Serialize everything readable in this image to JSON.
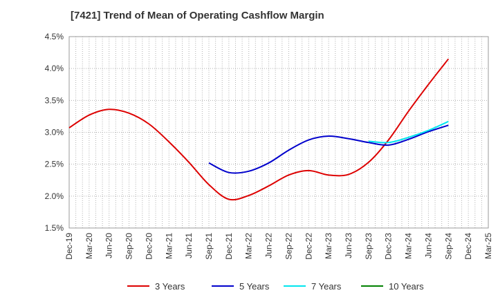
{
  "chart_data": {
    "type": "line",
    "title": "[7421]  Trend of Mean of Operating Cashflow Margin",
    "xlabel": "",
    "ylabel": "",
    "x_ticks": [
      "Dec-19",
      "Mar-20",
      "Jun-20",
      "Sep-20",
      "Dec-20",
      "Mar-21",
      "Jun-21",
      "Sep-21",
      "Dec-21",
      "Mar-22",
      "Jun-22",
      "Sep-22",
      "Dec-22",
      "Mar-23",
      "Jun-23",
      "Sep-23",
      "Dec-23",
      "Mar-24",
      "Jun-24",
      "Sep-24",
      "Dec-24",
      "Mar-25"
    ],
    "y_ticks": [
      "1.5%",
      "2.0%",
      "2.5%",
      "3.0%",
      "3.5%",
      "4.0%",
      "4.5%"
    ],
    "ylim": [
      1.5,
      4.5
    ],
    "grid": true,
    "legend_position": "bottom",
    "series": [
      {
        "name": "3 Years",
        "color": "#dd0000",
        "x": [
          "Dec-19",
          "Mar-20",
          "Jun-20",
          "Sep-20",
          "Dec-20",
          "Mar-21",
          "Jun-21",
          "Sep-21",
          "Dec-21",
          "Mar-22",
          "Jun-22",
          "Sep-22",
          "Dec-22",
          "Mar-23",
          "Jun-23",
          "Sep-23",
          "Dec-23",
          "Mar-24",
          "Jun-24",
          "Sep-24"
        ],
        "values": [
          3.07,
          3.27,
          3.36,
          3.3,
          3.13,
          2.85,
          2.53,
          2.18,
          1.95,
          2.01,
          2.16,
          2.33,
          2.4,
          2.33,
          2.34,
          2.53,
          2.88,
          3.33,
          3.75,
          4.15
        ]
      },
      {
        "name": "5 Years",
        "color": "#0000cc",
        "x": [
          "Sep-21",
          "Dec-21",
          "Mar-22",
          "Jun-22",
          "Sep-22",
          "Dec-22",
          "Mar-23",
          "Jun-23",
          "Sep-23",
          "Dec-23",
          "Mar-24",
          "Jun-24",
          "Sep-24"
        ],
        "values": [
          2.52,
          2.37,
          2.39,
          2.52,
          2.72,
          2.88,
          2.94,
          2.9,
          2.84,
          2.8,
          2.89,
          3.01,
          3.11
        ]
      },
      {
        "name": "7 Years",
        "color": "#00e5ee",
        "x": [
          "Sep-23",
          "Dec-23",
          "Mar-24",
          "Jun-24",
          "Sep-24"
        ],
        "values": [
          2.86,
          2.84,
          2.92,
          3.03,
          3.17
        ]
      },
      {
        "name": "10 Years",
        "color": "#008000",
        "x": [],
        "values": []
      }
    ]
  }
}
